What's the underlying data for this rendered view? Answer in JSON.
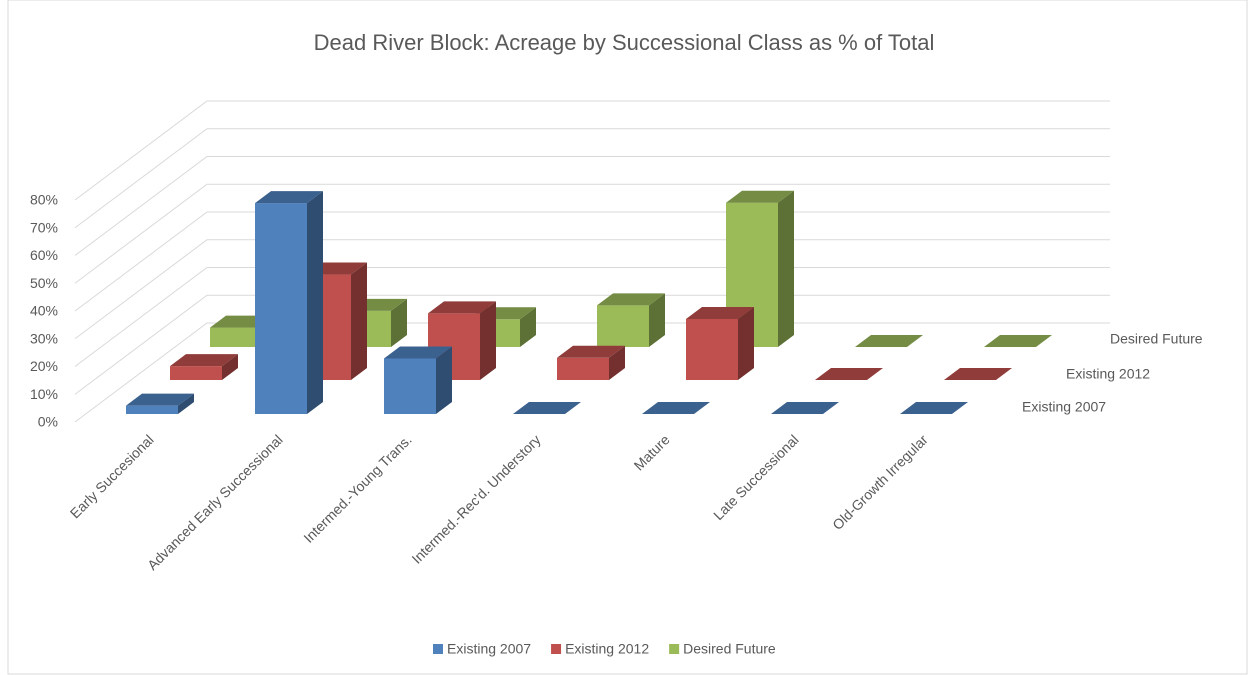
{
  "chart_data": {
    "type": "bar3d",
    "title": "Dead River Block: Acreage by Successional Class as % of Total",
    "categories": [
      "Early Succesional",
      "Advanced Early Successional",
      "Intermed.-Young Trans.",
      "Intermed.-Rec'd. Understory",
      "Mature",
      "Late Successional",
      "Old-Growth Irregular"
    ],
    "series": [
      {
        "name": "Existing 2007",
        "color": "#4f81bd",
        "values": [
          3,
          76,
          20,
          0,
          0,
          0,
          0
        ]
      },
      {
        "name": "Existing 2012",
        "color": "#c0504d",
        "values": [
          5,
          38,
          24,
          8,
          22,
          0,
          0
        ]
      },
      {
        "name": "Desired Future",
        "color": "#9bbb59",
        "values": [
          7,
          13,
          10,
          15,
          52,
          0,
          0
        ]
      }
    ],
    "ylim": [
      0,
      80
    ],
    "yticks": [
      {
        "value": 0,
        "label": "0%"
      },
      {
        "value": 10,
        "label": "10%"
      },
      {
        "value": 20,
        "label": "20%"
      },
      {
        "value": 30,
        "label": "30%"
      },
      {
        "value": 40,
        "label": "40%"
      },
      {
        "value": 50,
        "label": "50%"
      },
      {
        "value": 60,
        "label": "60%"
      },
      {
        "value": 70,
        "label": "70%"
      },
      {
        "value": 80,
        "label": "80%"
      }
    ],
    "grid": true,
    "legend": "bottom"
  }
}
